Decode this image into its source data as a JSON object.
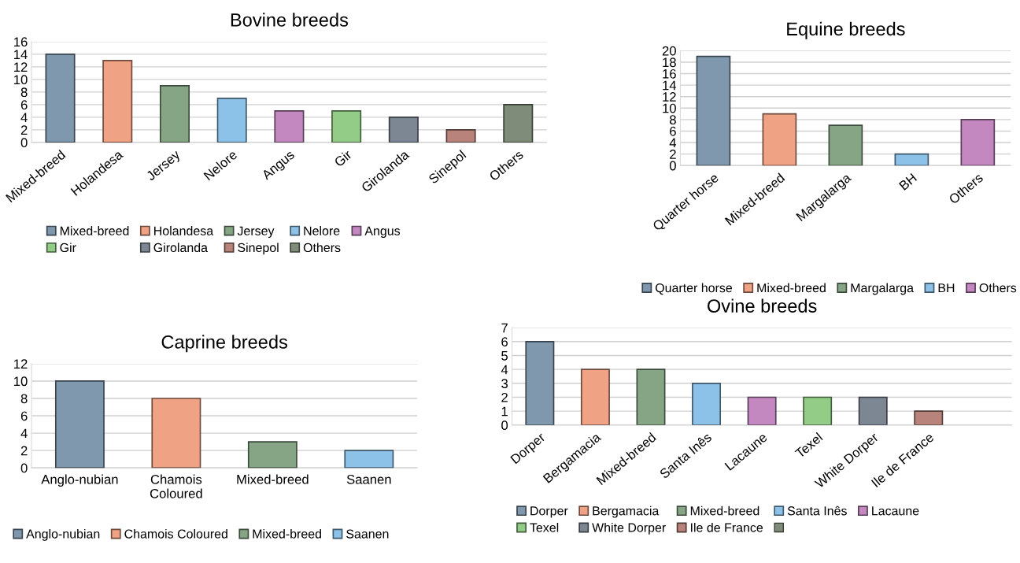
{
  "chart_data": [
    {
      "type": "bar",
      "title": "Bovine breeds",
      "categories": [
        "Mixed-breed",
        "Holandesa",
        "Jersey",
        "Nelore",
        "Angus",
        "Gir",
        "Girolanda",
        "Sinepol",
        "Others"
      ],
      "series": [
        {
          "name": "Mixed-breed",
          "color": "#7f98ad",
          "values": [
            14,
            null,
            null,
            null,
            null,
            null,
            null,
            null,
            null
          ]
        },
        {
          "name": "Holandesa",
          "color": "#f0a285",
          "values": [
            null,
            13,
            null,
            null,
            null,
            null,
            null,
            null,
            null
          ]
        },
        {
          "name": "Jersey",
          "color": "#86a585",
          "values": [
            null,
            null,
            9,
            null,
            null,
            null,
            null,
            null,
            null
          ]
        },
        {
          "name": "Nelore",
          "color": "#8cc2e8",
          "values": [
            null,
            null,
            null,
            7,
            null,
            null,
            null,
            null,
            null
          ]
        },
        {
          "name": "Angus",
          "color": "#c388c0",
          "values": [
            null,
            null,
            null,
            null,
            5,
            null,
            null,
            null,
            null
          ]
        },
        {
          "name": "Gir",
          "color": "#93cc86",
          "values": [
            null,
            null,
            null,
            null,
            null,
            5,
            null,
            null,
            null
          ]
        },
        {
          "name": "Girolanda",
          "color": "#7d8793",
          "values": [
            null,
            null,
            null,
            null,
            null,
            null,
            4,
            null,
            null
          ]
        },
        {
          "name": "Sinepol",
          "color": "#b8837a",
          "values": [
            null,
            null,
            null,
            null,
            null,
            null,
            null,
            2,
            null
          ]
        },
        {
          "name": "Others",
          "color": "#7f8c7a",
          "values": [
            null,
            null,
            null,
            null,
            null,
            null,
            null,
            null,
            6
          ]
        }
      ],
      "ylim": [
        0,
        16
      ],
      "yticks": [
        0,
        2,
        4,
        6,
        8,
        10,
        12,
        14,
        16
      ],
      "grid": "y",
      "legend": "bottom"
    },
    {
      "type": "bar",
      "title": "Equine breeds",
      "categories": [
        "Quarter horse",
        "Mixed-breed",
        "Margalarga",
        "BH",
        "Others"
      ],
      "series": [
        {
          "name": "Quarter horse",
          "color": "#7f98ad",
          "values": [
            19,
            null,
            null,
            null,
            null
          ]
        },
        {
          "name": "Mixed-breed",
          "color": "#f0a285",
          "values": [
            null,
            9,
            null,
            null,
            null
          ]
        },
        {
          "name": "Margalarga",
          "color": "#86a585",
          "values": [
            null,
            null,
            7,
            null,
            null
          ]
        },
        {
          "name": "BH",
          "color": "#8cc2e8",
          "values": [
            null,
            null,
            null,
            2,
            null
          ]
        },
        {
          "name": "Others",
          "color": "#c388c0",
          "values": [
            null,
            null,
            null,
            null,
            8
          ]
        }
      ],
      "ylim": [
        0,
        20
      ],
      "yticks": [
        0,
        2,
        4,
        6,
        8,
        10,
        12,
        14,
        16,
        18,
        20
      ],
      "grid": "y",
      "legend": "bottom"
    },
    {
      "type": "bar",
      "title": "Caprine breeds",
      "categories": [
        "Anglo-nubian",
        "Chamois Coloured",
        "Mixed-breed",
        "Saanen"
      ],
      "series": [
        {
          "name": "Anglo-nubian",
          "color": "#7f98ad",
          "values": [
            10,
            null,
            null,
            null
          ]
        },
        {
          "name": "Chamois Coloured",
          "color": "#f0a285",
          "values": [
            null,
            8,
            null,
            null
          ]
        },
        {
          "name": "Mixed-breed",
          "color": "#86a585",
          "values": [
            null,
            null,
            3,
            null
          ]
        },
        {
          "name": "Saanen",
          "color": "#8cc2e8",
          "values": [
            null,
            null,
            null,
            2
          ]
        }
      ],
      "ylim": [
        0,
        12
      ],
      "yticks": [
        0,
        2,
        4,
        6,
        8,
        10,
        12
      ],
      "grid": "y",
      "legend": "bottom"
    },
    {
      "type": "bar",
      "title": "Ovine breeds",
      "categories": [
        "Dorper",
        "Bergamacia",
        "Mixed-breed",
        "Santa Inês",
        "Lacaune",
        "Texel",
        "White Dorper",
        "Ile de France",
        null
      ],
      "series": [
        {
          "name": "Dorper",
          "color": "#7f98ad",
          "values": [
            6,
            null,
            null,
            null,
            null,
            null,
            null,
            null,
            null
          ]
        },
        {
          "name": "Bergamacia",
          "color": "#f0a285",
          "values": [
            null,
            4,
            null,
            null,
            null,
            null,
            null,
            null,
            null
          ]
        },
        {
          "name": "Mixed-breed",
          "color": "#86a585",
          "values": [
            null,
            null,
            4,
            null,
            null,
            null,
            null,
            null,
            null
          ]
        },
        {
          "name": "Santa Inês",
          "color": "#8cc2e8",
          "values": [
            null,
            null,
            null,
            3,
            null,
            null,
            null,
            null,
            null
          ]
        },
        {
          "name": "Lacaune",
          "color": "#c388c0",
          "values": [
            null,
            null,
            null,
            null,
            2,
            null,
            null,
            null,
            null
          ]
        },
        {
          "name": "Texel",
          "color": "#93cc86",
          "values": [
            null,
            null,
            null,
            null,
            null,
            2,
            null,
            null,
            null
          ]
        },
        {
          "name": "White Dorper",
          "color": "#7d8793",
          "values": [
            null,
            null,
            null,
            null,
            null,
            null,
            2,
            null,
            null
          ]
        },
        {
          "name": "Ile de France",
          "color": "#b8837a",
          "values": [
            null,
            null,
            null,
            null,
            null,
            null,
            null,
            1,
            null
          ]
        },
        {
          "color": "#7f8c7a",
          "values": [
            null,
            null,
            null,
            null,
            null,
            null,
            null,
            null,
            null
          ]
        }
      ],
      "ylim": [
        0,
        7
      ],
      "yticks": [
        0,
        1,
        2,
        3,
        4,
        5,
        6,
        7
      ],
      "grid": "y",
      "legend": "bottom"
    }
  ]
}
